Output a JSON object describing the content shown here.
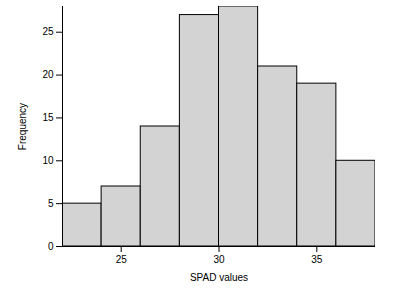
{
  "chart_data": {
    "type": "histogram",
    "x_label": "SPAD values",
    "y_label": "Frequency",
    "bins": [
      22,
      24,
      26,
      28,
      30,
      32,
      34,
      36,
      38
    ],
    "values": [
      5,
      7,
      14,
      27,
      28,
      21,
      19,
      10
    ],
    "color": "#d3d3d3",
    "xlim": [
      22,
      38
    ],
    "xticks": [
      25,
      30,
      35
    ],
    "ylim": [
      0,
      28
    ],
    "yticks": [
      0,
      5,
      10,
      15,
      20,
      25
    ],
    "grid": false
  }
}
